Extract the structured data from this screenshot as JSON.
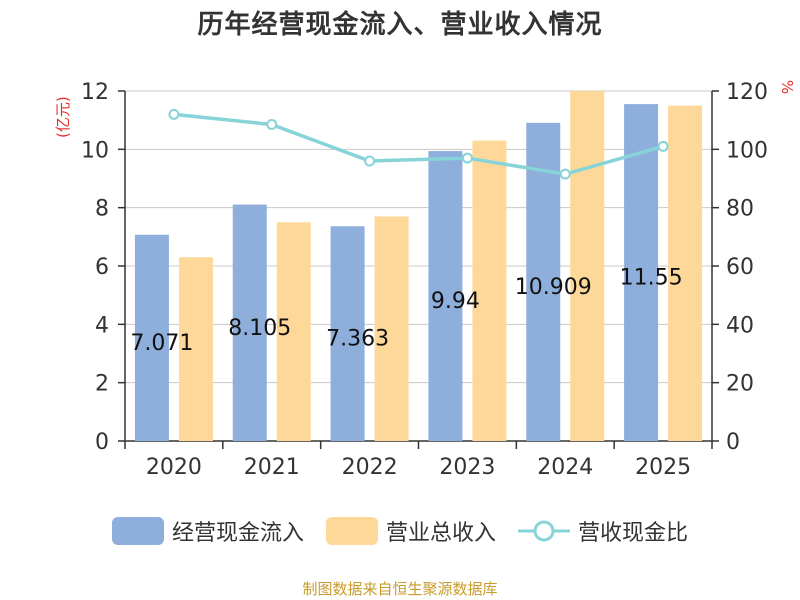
{
  "title": "历年经营现金流入、营业收入情况",
  "left_unit": "(亿元)",
  "right_unit": "%",
  "footer": "制图数据来自恒生聚源数据库",
  "colors": {
    "cash_inflow": "#8eaedb",
    "revenue": "#fdd898",
    "ratio": "#86d3d8"
  },
  "chart_data": {
    "type": "bar",
    "categories": [
      "2020",
      "2021",
      "2022",
      "2023",
      "2024",
      "2025"
    ],
    "series": [
      {
        "name": "经营现金流入",
        "axis": "left",
        "values": [
          7.071,
          8.105,
          7.363,
          9.94,
          10.909,
          11.55
        ],
        "labels": [
          "7.071",
          "8.105",
          "7.363",
          "9.94",
          "10.909",
          "11.55"
        ]
      },
      {
        "name": "营业总收入",
        "axis": "left",
        "values": [
          6.3,
          7.5,
          7.7,
          10.3,
          12.0,
          11.5
        ]
      },
      {
        "name": "营收现金比",
        "axis": "right",
        "type": "line",
        "values": [
          112,
          108.5,
          96,
          97,
          91.5,
          101
        ]
      }
    ],
    "left_axis": {
      "ylim": [
        0,
        12
      ],
      "ticks": [
        "0",
        "2",
        "4",
        "6",
        "8",
        "10",
        "12"
      ]
    },
    "right_axis": {
      "ylim": [
        0,
        120
      ],
      "ticks": [
        "0",
        "20",
        "40",
        "60",
        "80",
        "100",
        "120"
      ]
    },
    "grid": true,
    "legend_position": "bottom"
  }
}
